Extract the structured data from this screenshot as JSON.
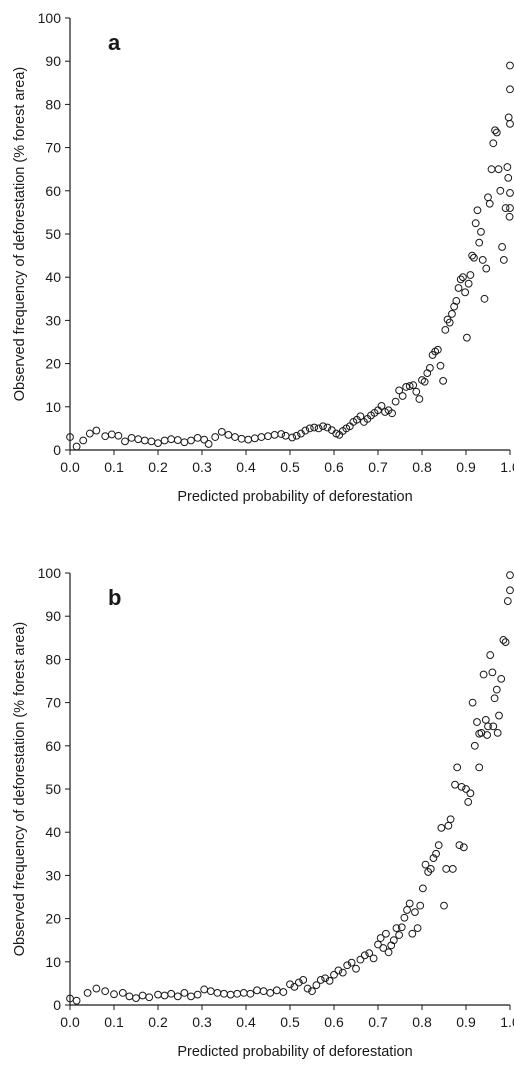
{
  "chart_data": [
    {
      "type": "scatter",
      "panel_label": "a",
      "xlabel": "Predicted probability of deforestation",
      "ylabel": "Observed frequency of deforestation (% forest area)",
      "xlim": [
        0.0,
        1.0
      ],
      "ylim": [
        0,
        100
      ],
      "x_ticks": [
        "0.0",
        "0.1",
        "0.2",
        "0.3",
        "0.4",
        "0.5",
        "0.6",
        "0.7",
        "0.8",
        "0.9",
        "1.0"
      ],
      "y_ticks": [
        "0",
        "10",
        "20",
        "30",
        "40",
        "50",
        "60",
        "70",
        "80",
        "90",
        "100"
      ],
      "grid": false,
      "marker": "open-circle",
      "color": "#1a1a1a",
      "points": [
        [
          0.0,
          3.0
        ],
        [
          0.015,
          0.8
        ],
        [
          0.03,
          2.2
        ],
        [
          0.045,
          3.8
        ],
        [
          0.06,
          4.5
        ],
        [
          0.08,
          3.2
        ],
        [
          0.095,
          3.6
        ],
        [
          0.11,
          3.3
        ],
        [
          0.125,
          2.0
        ],
        [
          0.14,
          2.8
        ],
        [
          0.155,
          2.5
        ],
        [
          0.17,
          2.2
        ],
        [
          0.185,
          2.0
        ],
        [
          0.2,
          1.6
        ],
        [
          0.215,
          2.2
        ],
        [
          0.23,
          2.5
        ],
        [
          0.245,
          2.3
        ],
        [
          0.26,
          1.8
        ],
        [
          0.275,
          2.2
        ],
        [
          0.29,
          2.8
        ],
        [
          0.305,
          2.4
        ],
        [
          0.315,
          1.4
        ],
        [
          0.33,
          3.0
        ],
        [
          0.345,
          4.2
        ],
        [
          0.36,
          3.5
        ],
        [
          0.375,
          3.0
        ],
        [
          0.39,
          2.6
        ],
        [
          0.405,
          2.4
        ],
        [
          0.42,
          2.7
        ],
        [
          0.435,
          3.0
        ],
        [
          0.45,
          3.2
        ],
        [
          0.465,
          3.5
        ],
        [
          0.48,
          3.7
        ],
        [
          0.49,
          3.3
        ],
        [
          0.505,
          2.9
        ],
        [
          0.515,
          3.3
        ],
        [
          0.525,
          3.8
        ],
        [
          0.535,
          4.5
        ],
        [
          0.545,
          5.0
        ],
        [
          0.555,
          5.2
        ],
        [
          0.565,
          5.0
        ],
        [
          0.575,
          5.5
        ],
        [
          0.585,
          5.2
        ],
        [
          0.595,
          4.6
        ],
        [
          0.605,
          3.8
        ],
        [
          0.612,
          3.5
        ],
        [
          0.62,
          4.4
        ],
        [
          0.628,
          5.0
        ],
        [
          0.636,
          5.5
        ],
        [
          0.644,
          6.5
        ],
        [
          0.652,
          7.0
        ],
        [
          0.66,
          7.8
        ],
        [
          0.668,
          6.5
        ],
        [
          0.676,
          7.2
        ],
        [
          0.684,
          8.0
        ],
        [
          0.692,
          8.6
        ],
        [
          0.7,
          9.2
        ],
        [
          0.708,
          10.2
        ],
        [
          0.716,
          8.8
        ],
        [
          0.724,
          9.2
        ],
        [
          0.732,
          8.5
        ],
        [
          0.74,
          11.2
        ],
        [
          0.748,
          13.8
        ],
        [
          0.756,
          12.5
        ],
        [
          0.764,
          14.6
        ],
        [
          0.772,
          14.8
        ],
        [
          0.78,
          15.0
        ],
        [
          0.787,
          13.5
        ],
        [
          0.794,
          11.8
        ],
        [
          0.8,
          16.2
        ],
        [
          0.806,
          15.8
        ],
        [
          0.812,
          17.8
        ],
        [
          0.818,
          19.0
        ],
        [
          0.824,
          22.0
        ],
        [
          0.83,
          22.8
        ],
        [
          0.836,
          23.2
        ],
        [
          0.842,
          19.5
        ],
        [
          0.848,
          16.0
        ],
        [
          0.853,
          27.8
        ],
        [
          0.858,
          30.2
        ],
        [
          0.863,
          29.5
        ],
        [
          0.868,
          31.5
        ],
        [
          0.873,
          33.2
        ],
        [
          0.878,
          34.5
        ],
        [
          0.883,
          37.5
        ],
        [
          0.888,
          39.5
        ],
        [
          0.893,
          40.0
        ],
        [
          0.898,
          36.5
        ],
        [
          0.902,
          26.0
        ],
        [
          0.906,
          38.5
        ],
        [
          0.91,
          40.5
        ],
        [
          0.914,
          45.0
        ],
        [
          0.918,
          44.5
        ],
        [
          0.922,
          52.5
        ],
        [
          0.926,
          55.5
        ],
        [
          0.93,
          48.0
        ],
        [
          0.934,
          50.5
        ],
        [
          0.938,
          44.0
        ],
        [
          0.942,
          35.0
        ],
        [
          0.946,
          42.0
        ],
        [
          0.95,
          58.5
        ],
        [
          0.954,
          57.0
        ],
        [
          0.958,
          65.0
        ],
        [
          0.962,
          71.0
        ],
        [
          0.966,
          74.0
        ],
        [
          0.97,
          73.5
        ],
        [
          0.974,
          65.0
        ],
        [
          0.978,
          60.0
        ],
        [
          0.982,
          47.0
        ],
        [
          0.986,
          44.0
        ],
        [
          0.99,
          56.0
        ],
        [
          0.994,
          65.5
        ],
        [
          0.997,
          77.0
        ],
        [
          1.0,
          83.5
        ],
        [
          0.999,
          54.0
        ],
        [
          0.996,
          63.0
        ],
        [
          1.0,
          59.5
        ],
        [
          1.0,
          89.0
        ],
        [
          1.0,
          75.5
        ],
        [
          1.0,
          56.0
        ]
      ]
    },
    {
      "type": "scatter",
      "panel_label": "b",
      "xlabel": "Predicted probability of deforestation",
      "ylabel": "Observed frequency of deforestation (% forest area)",
      "xlim": [
        0.0,
        1.0
      ],
      "ylim": [
        0,
        100
      ],
      "x_ticks": [
        "0.0",
        "0.1",
        "0.2",
        "0.3",
        "0.4",
        "0.5",
        "0.6",
        "0.7",
        "0.8",
        "0.9",
        "1.0"
      ],
      "y_ticks": [
        "0",
        "10",
        "20",
        "30",
        "40",
        "50",
        "60",
        "70",
        "80",
        "90",
        "100"
      ],
      "grid": false,
      "marker": "open-circle",
      "color": "#1a1a1a",
      "points": [
        [
          0.0,
          1.5
        ],
        [
          0.015,
          1.0
        ],
        [
          0.04,
          2.8
        ],
        [
          0.06,
          3.8
        ],
        [
          0.08,
          3.2
        ],
        [
          0.1,
          2.5
        ],
        [
          0.12,
          2.8
        ],
        [
          0.135,
          2.0
        ],
        [
          0.15,
          1.6
        ],
        [
          0.165,
          2.2
        ],
        [
          0.18,
          1.8
        ],
        [
          0.2,
          2.4
        ],
        [
          0.215,
          2.2
        ],
        [
          0.23,
          2.6
        ],
        [
          0.245,
          2.0
        ],
        [
          0.26,
          2.8
        ],
        [
          0.275,
          2.0
        ],
        [
          0.29,
          2.4
        ],
        [
          0.305,
          3.6
        ],
        [
          0.32,
          3.2
        ],
        [
          0.335,
          2.8
        ],
        [
          0.35,
          2.6
        ],
        [
          0.365,
          2.4
        ],
        [
          0.38,
          2.6
        ],
        [
          0.395,
          2.8
        ],
        [
          0.41,
          2.6
        ],
        [
          0.425,
          3.4
        ],
        [
          0.44,
          3.2
        ],
        [
          0.455,
          2.8
        ],
        [
          0.47,
          3.4
        ],
        [
          0.485,
          3.0
        ],
        [
          0.5,
          4.8
        ],
        [
          0.51,
          4.2
        ],
        [
          0.52,
          5.2
        ],
        [
          0.53,
          5.8
        ],
        [
          0.54,
          3.8
        ],
        [
          0.55,
          3.2
        ],
        [
          0.56,
          4.6
        ],
        [
          0.57,
          5.8
        ],
        [
          0.58,
          6.2
        ],
        [
          0.59,
          5.6
        ],
        [
          0.6,
          7.0
        ],
        [
          0.61,
          8.0
        ],
        [
          0.62,
          7.5
        ],
        [
          0.63,
          9.2
        ],
        [
          0.64,
          9.8
        ],
        [
          0.65,
          8.4
        ],
        [
          0.66,
          10.5
        ],
        [
          0.67,
          11.5
        ],
        [
          0.68,
          12.0
        ],
        [
          0.69,
          10.8
        ],
        [
          0.7,
          14.0
        ],
        [
          0.706,
          15.5
        ],
        [
          0.712,
          13.2
        ],
        [
          0.718,
          16.5
        ],
        [
          0.724,
          12.2
        ],
        [
          0.73,
          13.8
        ],
        [
          0.736,
          15.0
        ],
        [
          0.742,
          17.8
        ],
        [
          0.748,
          16.2
        ],
        [
          0.754,
          18.0
        ],
        [
          0.76,
          20.2
        ],
        [
          0.766,
          22.0
        ],
        [
          0.772,
          23.5
        ],
        [
          0.778,
          16.5
        ],
        [
          0.784,
          21.5
        ],
        [
          0.79,
          17.8
        ],
        [
          0.796,
          23.0
        ],
        [
          0.802,
          27.0
        ],
        [
          0.808,
          32.5
        ],
        [
          0.814,
          30.8
        ],
        [
          0.82,
          31.5
        ],
        [
          0.826,
          34.0
        ],
        [
          0.832,
          35.0
        ],
        [
          0.838,
          37.0
        ],
        [
          0.844,
          41.0
        ],
        [
          0.85,
          23.0
        ],
        [
          0.855,
          31.5
        ],
        [
          0.86,
          41.5
        ],
        [
          0.865,
          43.0
        ],
        [
          0.87,
          31.5
        ],
        [
          0.875,
          51.0
        ],
        [
          0.88,
          55.0
        ],
        [
          0.885,
          37.0
        ],
        [
          0.89,
          50.5
        ],
        [
          0.895,
          36.5
        ],
        [
          0.9,
          50.0
        ],
        [
          0.905,
          47.0
        ],
        [
          0.91,
          49.0
        ],
        [
          0.915,
          70.0
        ],
        [
          0.92,
          60.0
        ],
        [
          0.925,
          65.5
        ],
        [
          0.93,
          55.0
        ],
        [
          0.935,
          63.0
        ],
        [
          0.94,
          76.5
        ],
        [
          0.945,
          66.0
        ],
        [
          0.95,
          64.5
        ],
        [
          0.955,
          81.0
        ],
        [
          0.96,
          77.0
        ],
        [
          0.965,
          71.0
        ],
        [
          0.97,
          73.0
        ],
        [
          0.975,
          67.0
        ],
        [
          0.98,
          75.5
        ],
        [
          0.985,
          84.5
        ],
        [
          0.99,
          84.0
        ],
        [
          0.995,
          93.5
        ],
        [
          1.0,
          96.0
        ],
        [
          1.0,
          99.5
        ],
        [
          0.972,
          63.0
        ],
        [
          0.962,
          64.5
        ],
        [
          0.948,
          62.5
        ],
        [
          0.93,
          62.8
        ]
      ]
    }
  ]
}
